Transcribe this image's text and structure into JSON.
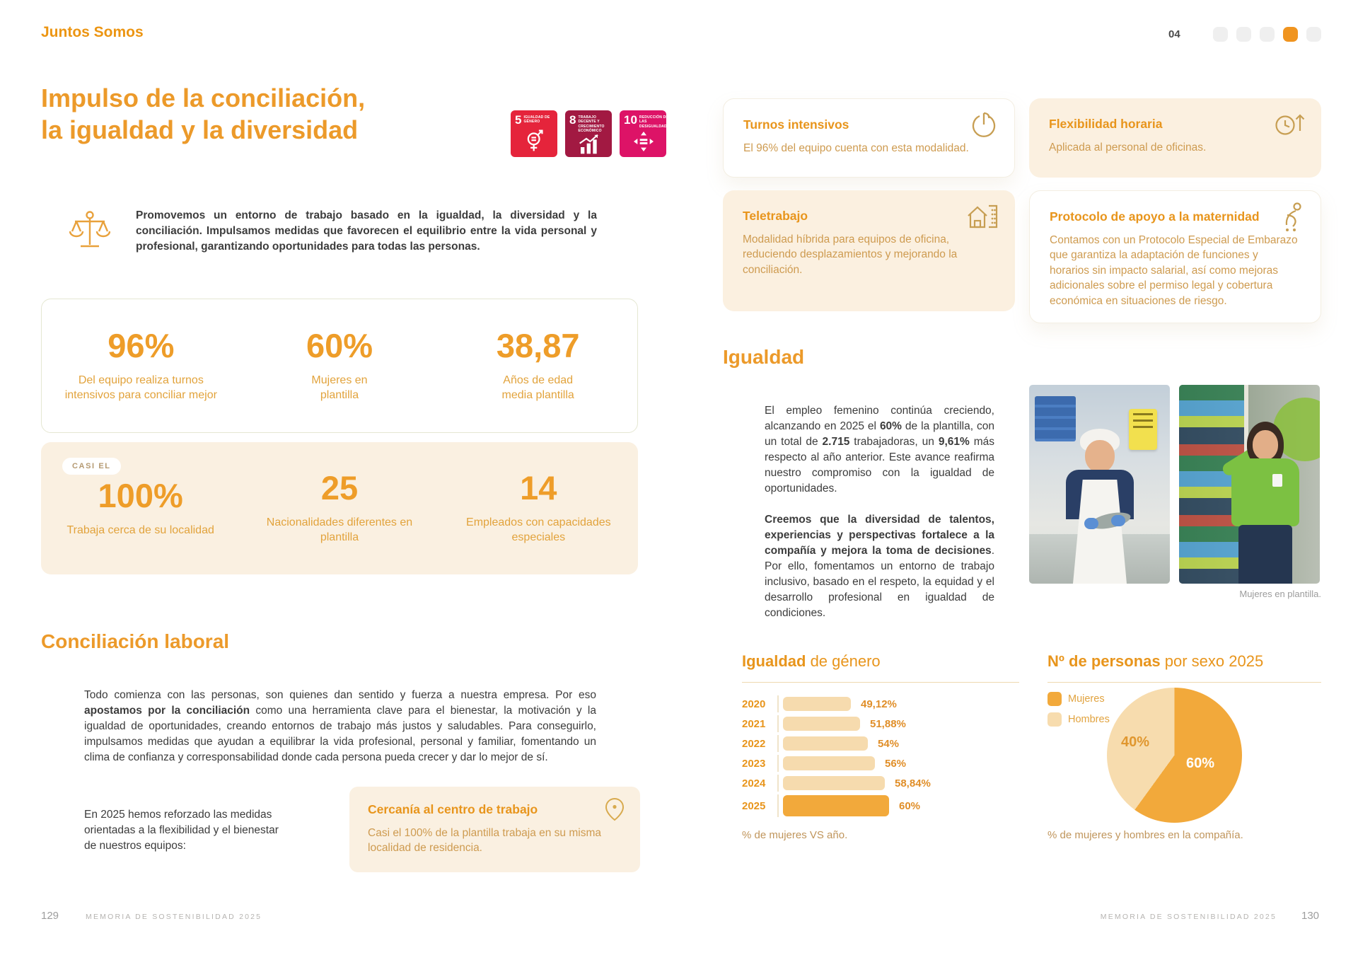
{
  "colors": {
    "accent": "#EC9A2A",
    "card_cream": "#FAF0E1",
    "bar_light": "#F6DBAE",
    "bar_dark": "#F2A93B",
    "active_dot": "#F0941F"
  },
  "header": {
    "brand": "Juntos Somos",
    "chapter_number": "04"
  },
  "left_page": {
    "title_line1": "Impulso de la conciliación,",
    "title_line2": "la igualdad y la diversidad",
    "sdg_badges": [
      {
        "number": "5",
        "label": "IGUALDAD DE GÉNERO",
        "color": "#E5243B"
      },
      {
        "number": "8",
        "label": "TRABAJO DECENTE Y CRECIMIENTO ECONÓMICO",
        "color": "#A21942"
      },
      {
        "number": "10",
        "label": "REDUCCIÓN DE LAS DESIGUALDADES",
        "color": "#DD1367"
      }
    ],
    "intro": "Promovemos un entorno de trabajo basado en la igualdad, la diversidad y la conciliación. Impulsamos medidas que favorecen el equilibrio entre la vida personal y profesional, garantizando oportunidades para todas las personas.",
    "stats_primary": [
      {
        "value": "96%",
        "label": "Del equipo realiza turnos intensivos para conciliar mejor"
      },
      {
        "value": "60%",
        "label": "Mujeres en plantilla"
      },
      {
        "value": "38,87",
        "label": "Años de edad media plantilla"
      }
    ],
    "stats_secondary": {
      "badge": "CASI EL",
      "items": [
        {
          "value": "100%",
          "label": "Trabaja cerca de su localidad"
        },
        {
          "value": "25",
          "label": "Nacionalidades diferentes en plantilla"
        },
        {
          "value": "14",
          "label": "Empleados con capacidades especiales"
        }
      ]
    },
    "conciliacion": {
      "heading": "Conciliación laboral",
      "p1_start": "Todo comienza con las personas, son quienes dan sentido y fuerza a nuestra empresa. Por eso ",
      "p1_bold": "apostamos por la conciliación",
      "p1_end": " como una herramienta clave para el bienestar, la motivación y la igualdad de oportunidades, creando entornos de trabajo más justos y saludables. Para conseguirlo, impulsamos medidas que ayudan a equilibrar la vida profesional, personal y familiar, fomentando un clima de confianza y corresponsabilidad donde cada persona pueda crecer y dar lo mejor de sí.",
      "p2": "En 2025 hemos reforzado las medidas orientadas a la flexibilidad y el bienestar de nuestros equipos:"
    },
    "cercania_card": {
      "title": "Cercanía al centro de trabajo",
      "body": "Casi el 100% de la plantilla trabaja en su misma localidad de residencia."
    },
    "footer": {
      "page_number": "129",
      "doc_title": "MEMORIA DE SOSTENIBILIDAD 2025"
    }
  },
  "right_page": {
    "measure_cards": [
      {
        "title": "Turnos intensivos",
        "body": "El 96% del equipo cuenta con esta modalidad.",
        "icon": "power-icon",
        "style": "white"
      },
      {
        "title": "Flexibilidad horaria",
        "body": "Aplicada al personal de oficinas.",
        "icon": "clock-up-icon",
        "style": "cream"
      },
      {
        "title": "Teletrabajo",
        "body": "Modalidad híbrida para equipos de oficina, reduciendo desplazamientos y mejorando la conciliación.",
        "icon": "home-office-icon",
        "style": "cream"
      },
      {
        "title": "Protocolo de apoyo a la maternidad",
        "body": "Contamos con un Protocolo Especial de Embarazo que garantiza la adaptación de funciones y horarios sin impacto salarial, así como mejoras adicionales sobre el permiso legal y cobertura económica en situaciones de riesgo.",
        "icon": "maternity-icon",
        "style": "white"
      }
    ],
    "igualdad": {
      "heading": "Igualdad",
      "p1": {
        "s0": "El empleo femenino continúa creciendo, alcanzando en 2025 el ",
        "b1": "60%",
        "s2": " de la plantilla, con un total de ",
        "b3": "2.715",
        "s4": " trabajadoras, un ",
        "b5": "9,61%",
        "s6": " más respecto al año anterior. Este avance reafirma nuestro compromiso con la igualdad de oportunidades."
      },
      "p2": {
        "b0": "Creemos que la diversidad de talentos, experiencias y perspectivas fortalece a la compañía y mejora la toma de decisiones",
        "s1": ". Por ello, fomentamos un entorno de trabajo inclusivo, basado en el respeto, la equidad y el desarrollo profesional en igualdad de condiciones."
      },
      "photo_caption": "Mujeres en plantilla."
    },
    "footer": {
      "doc_title": "MEMORIA DE SOSTENIBILIDAD 2025",
      "page_number": "130"
    }
  },
  "chart_data": [
    {
      "type": "bar",
      "title_bold": "Igualdad",
      "title_rest": " de género",
      "orientation": "horizontal",
      "categories": [
        "2020",
        "2021",
        "2022",
        "2023",
        "2024",
        "2025"
      ],
      "values": [
        49.12,
        51.88,
        54,
        56,
        58.84,
        60
      ],
      "value_labels": [
        "49,12%",
        "51,88%",
        "54%",
        "56%",
        "58,84%",
        "60%"
      ],
      "highlight_index": 5,
      "bar_color": "#F6DBAE",
      "bar_color_highlight": "#F2A93B",
      "caption": "% de mujeres VS año.",
      "xlabel": "% de mujeres",
      "ylabel": "año",
      "xlim": [
        30,
        62
      ]
    },
    {
      "type": "pie",
      "title_bold": "Nº de personas",
      "title_rest": " por sexo 2025",
      "labels": [
        "Mujeres",
        "Hombres"
      ],
      "values": [
        60,
        40
      ],
      "slice_labels": [
        "60%",
        "40%"
      ],
      "colors": [
        "#F2A93B",
        "#F7DCAE"
      ],
      "legend_position": "left",
      "caption": "% de mujeres y hombres en la compañía."
    }
  ]
}
